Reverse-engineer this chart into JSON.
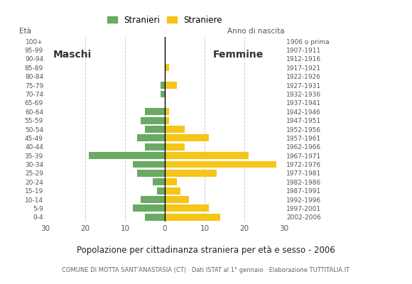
{
  "age_groups": [
    "0-4",
    "5-9",
    "10-14",
    "15-19",
    "20-24",
    "25-29",
    "30-34",
    "35-39",
    "40-44",
    "45-49",
    "50-54",
    "55-59",
    "60-64",
    "65-69",
    "70-74",
    "75-79",
    "80-84",
    "85-89",
    "90-94",
    "95-99",
    "100+"
  ],
  "birth_years": [
    "2002-2006",
    "1997-2001",
    "1992-1996",
    "1987-1991",
    "1982-1986",
    "1977-1981",
    "1972-1976",
    "1967-1971",
    "1962-1966",
    "1957-1961",
    "1952-1956",
    "1947-1951",
    "1942-1946",
    "1937-1941",
    "1932-1936",
    "1927-1931",
    "1922-1926",
    "1917-1921",
    "1912-1916",
    "1907-1911",
    "1906 o prima"
  ],
  "males": [
    5,
    8,
    6,
    2,
    3,
    7,
    8,
    19,
    5,
    7,
    5,
    6,
    5,
    0,
    1,
    1,
    0,
    0,
    0,
    0,
    0
  ],
  "females": [
    14,
    11,
    6,
    4,
    3,
    13,
    28,
    21,
    5,
    11,
    5,
    1,
    1,
    0,
    0,
    3,
    0,
    1,
    0,
    0,
    0
  ],
  "male_color": "#6aaa64",
  "female_color": "#f5c518",
  "grid_color": "#cccccc",
  "title": "Popolazione per cittadinanza straniera per eta e sesso - 2006",
  "title_display": "Popolazione per cittadinanza straniera per età e sesso - 2006",
  "subtitle": "COMUNE DI MOTTA SANT’ANASTASIA (CT) · Dati ISTAT al 1° gennaio · Elaborazione TUTTITALIA.IT",
  "legend_male": "Stranieri",
  "legend_female": "Straniere",
  "label_males": "Maschi",
  "label_females": "Femmine",
  "label_eta": "Età",
  "label_anno": "Anno di nascita",
  "xlim": 30,
  "bar_height": 0.8
}
